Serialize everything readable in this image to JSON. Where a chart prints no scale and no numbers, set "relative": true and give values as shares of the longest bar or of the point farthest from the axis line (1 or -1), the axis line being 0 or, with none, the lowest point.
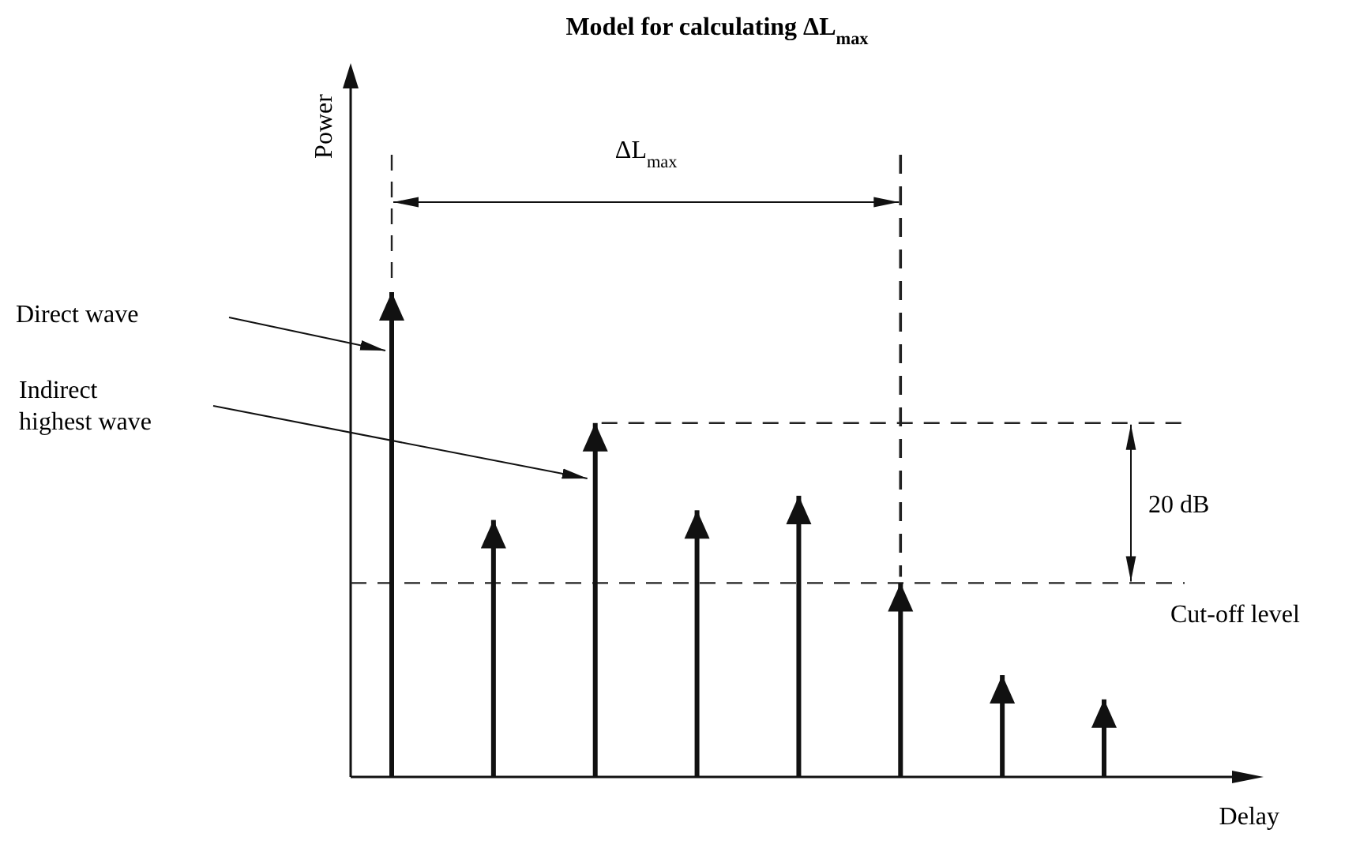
{
  "chart_data": {
    "type": "bar",
    "title": "Model for calculating ΔL$_{max}$",
    "xlabel": "Delay",
    "relative": true,
    "color": "#111111",
    "marker": "triangle",
    "categories": [
      null,
      null,
      null,
      null,
      null,
      null,
      null,
      null
    ],
    "values": [
      1,
      0.53,
      0.73,
      0.55,
      0.58,
      0.4,
      0.21,
      0.16
    ],
    "ref_lines": [
      {
        "axis": "y",
        "value": 0.73,
        "line_style": "dashed"
      },
      {
        "axis": "y",
        "value": 0.4,
        "label": "Cut-off level",
        "line_style": "dashed"
      }
    ],
    "annotations": [
      "Direct wave",
      "Indirect highest wave",
      "ΔL$_{max}$",
      "20 dB",
      "Power"
    ]
  }
}
